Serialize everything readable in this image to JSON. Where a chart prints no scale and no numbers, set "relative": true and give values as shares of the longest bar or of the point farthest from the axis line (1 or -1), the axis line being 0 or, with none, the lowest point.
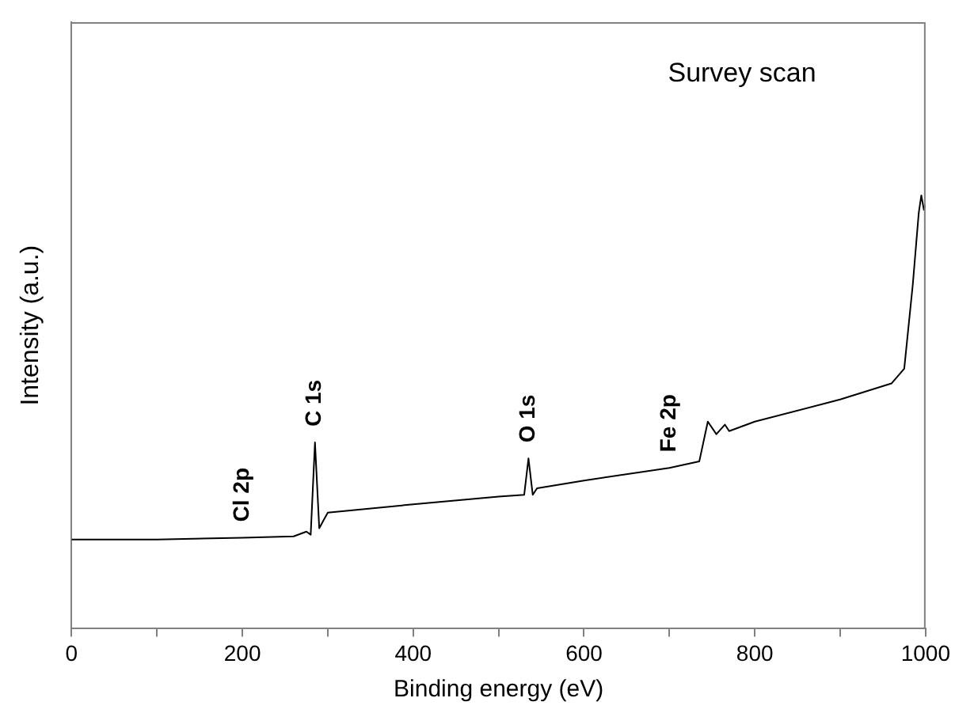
{
  "chart_data": {
    "type": "line",
    "relative": true,
    "xlabel": "Binding energy (eV)",
    "ylabel": "Intensity (a.u.)",
    "x": [
      0,
      100,
      200,
      260,
      275,
      280,
      285,
      290,
      295,
      300,
      400,
      500,
      530,
      535,
      540,
      545,
      600,
      700,
      735,
      745,
      755,
      765,
      770,
      800,
      900,
      960,
      975,
      985,
      992,
      995,
      998,
      1000
    ],
    "series": [
      {
        "color": "#000000",
        "values": [
          0.206,
          0.206,
          0.21,
          0.213,
          0.224,
          0.217,
          0.43,
          0.232,
          0.25,
          0.268,
          0.287,
          0.305,
          0.309,
          0.393,
          0.309,
          0.324,
          0.342,
          0.371,
          0.386,
          0.478,
          0.449,
          0.471,
          0.456,
          0.478,
          0.529,
          0.566,
          0.6,
          0.794,
          0.96,
          1,
          0.967,
          0.978
        ]
      }
    ],
    "xlim": [
      0,
      1000
    ],
    "xticks": [
      0,
      {
        "value": 100,
        "label": null
      },
      200,
      {
        "value": 300,
        "label": null
      },
      400,
      {
        "value": 500,
        "label": null
      },
      600,
      {
        "value": 700,
        "label": null
      },
      800,
      {
        "value": 900,
        "label": null
      },
      1000
    ],
    "annotations": [
      "Survey scan",
      {
        "text": "Cl 2p",
        "x": 200,
        "y": 0.21
      },
      {
        "text": "C 1s",
        "x": 285,
        "y": 0.43
      },
      {
        "text": "O 1s",
        "x": 535,
        "y": 0.393
      },
      {
        "text": "Fe 2p",
        "x": 700,
        "y": 0.371
      }
    ],
    "grid": false,
    "legend": false,
    "marker": "none",
    "line_style": "solid"
  }
}
